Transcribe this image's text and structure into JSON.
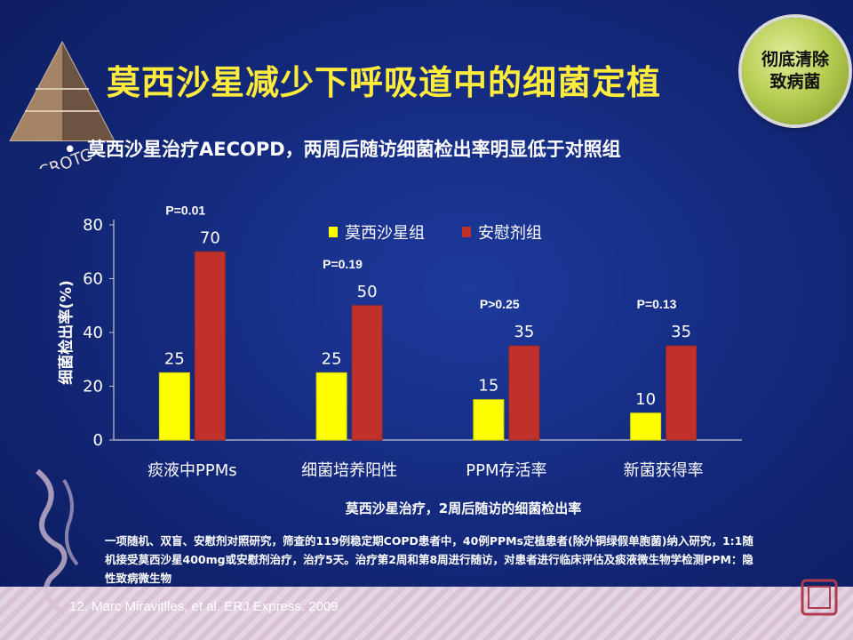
{
  "logo": {
    "text": "CROTC"
  },
  "title": "莫西沙星减少下呼吸道中的细菌定植",
  "badge": {
    "line1": "彻底清除",
    "line2": "致病菌"
  },
  "bullet": "莫西沙星治疗AECOPD，两周后随访细菌检出率明显低于对照组",
  "chart_data": {
    "type": "bar",
    "categories": [
      "痰液中PPMs",
      "细菌培养阳性",
      "PPM存活率",
      "新菌获得率"
    ],
    "series": [
      {
        "name": "莫西沙星组",
        "values": [
          25,
          25,
          15,
          10
        ],
        "color": "#ffff00"
      },
      {
        "name": "安慰剂组",
        "values": [
          70,
          50,
          35,
          35
        ],
        "color": "#c0312b"
      }
    ],
    "p_values": [
      "P=0.01",
      "P=0.19",
      "P>0.25",
      "P=0.13"
    ],
    "ylabel": "细菌检出率(%)",
    "xlabel": "莫西沙星治疗，2周后随访的细菌检出率",
    "ylim": [
      0,
      80
    ],
    "yticks": [
      0,
      20,
      40,
      60,
      80
    ],
    "legend_position": "top",
    "grid": false
  },
  "footnote": "一项随机、双盲、安慰剂对照研究，筛查的119例稳定期COPD患者中，40例PPMs定植患者(除外铜绿假单胞菌)纳入研究，1:1随机接受莫西沙星400mg或安慰剂治疗，治疗5天。治疗第2周和第8周进行随访，对患者进行临床评估及痰液微生物学检测PPM：隐性致病微生物",
  "reference": "12. Marc Miravitlles, et al. ERJ Express. 2009",
  "colors": {
    "title": "#ffeb3b",
    "background": "#142a7e",
    "badge": "#b8cf55"
  }
}
